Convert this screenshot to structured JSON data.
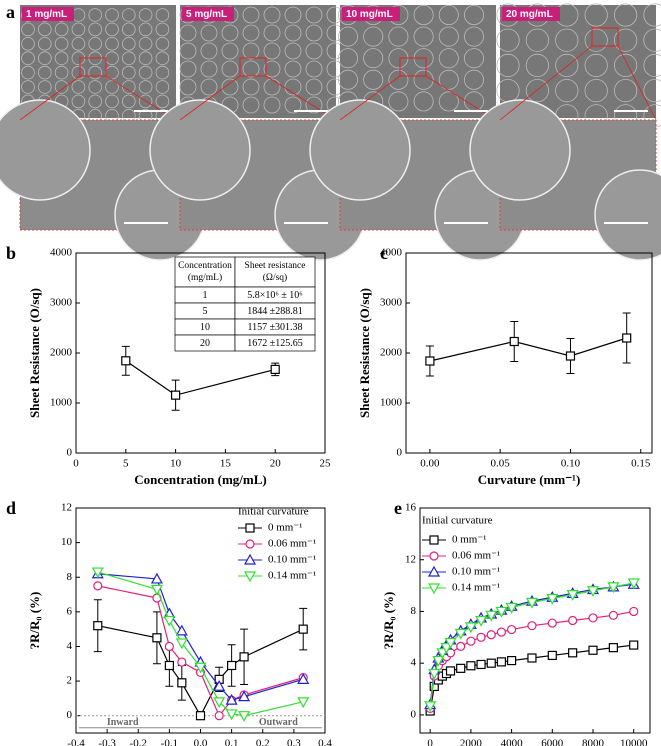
{
  "panel_a": {
    "label": "a",
    "images": [
      "1 mg/mL",
      "5 mg/mL",
      "10 mg/mL",
      "20 mg/mL"
    ]
  },
  "chart_data": [
    {
      "type": "line",
      "panel_label": "b",
      "x_label": "Concentration (mg/mL)",
      "y_label": "Sheet Resistance (O/sq)",
      "xlim": [
        0,
        25
      ],
      "xticks": [
        0,
        5,
        10,
        15,
        20,
        25
      ],
      "ylim": [
        0,
        4000
      ],
      "yticks": [
        0,
        1000,
        2000,
        3000,
        4000
      ],
      "x": [
        5,
        10,
        20
      ],
      "series": [
        {
          "color": "#000000",
          "marker": "square",
          "values": [
            1844,
            1157,
            1672
          ],
          "errors": [
            288.81,
            301.38,
            125.65
          ]
        }
      ],
      "table": {
        "header": [
          "Concentration (mg/mL)",
          "Sheet resistance (Ω/sq)"
        ],
        "rows": [
          [
            "1",
            "5.8×10⁶ ± 10⁶"
          ],
          [
            "5",
            "1844 ±288.81"
          ],
          [
            "10",
            "1157 ±301.38"
          ],
          [
            "20",
            "1672 ±125.65"
          ]
        ]
      }
    },
    {
      "type": "line",
      "panel_label": "c",
      "x_label": "Curvature (mm⁻¹)",
      "y_label": "Sheet Resistance (O/sq)",
      "xlim": [
        -0.017,
        0.158
      ],
      "xticks": [
        {
          "value": 0,
          "label": "0.00"
        },
        {
          "value": 0.05,
          "label": "0.05"
        },
        {
          "value": 0.1,
          "label": "0.10"
        },
        {
          "value": 0.15,
          "label": "0.15"
        }
      ],
      "ylim": [
        0,
        4000
      ],
      "yticks": [
        0,
        1000,
        2000,
        3000,
        4000
      ],
      "x": [
        0,
        0.06,
        0.1,
        0.14
      ],
      "series": [
        {
          "color": "#000000",
          "marker": "square",
          "values": [
            1840,
            2230,
            1940,
            2300
          ],
          "errors": [
            300,
            400,
            350,
            500
          ]
        }
      ]
    },
    {
      "type": "line",
      "panel_label": "d",
      "x_label": "Curvature (mm⁻¹)",
      "y_label": "?R/R₀ (%)",
      "xlim": [
        -0.4,
        0.4
      ],
      "xticks": [
        -0.4,
        -0.3,
        -0.2,
        -0.1,
        {
          "value": 0,
          "label": "0.0"
        },
        0.1,
        0.2,
        0.3,
        0.4
      ],
      "ylim": [
        -1,
        12
      ],
      "yticks": [
        0,
        2,
        4,
        6,
        8,
        10,
        12
      ],
      "legend_title": "Initial curvature",
      "annotations": [
        "Inward",
        "Outward"
      ],
      "x": [
        -0.33,
        -0.14,
        -0.1,
        -0.06,
        0,
        0.06,
        0.1,
        0.14,
        0.33
      ],
      "series": [
        {
          "name": "0 mm⁻¹",
          "color": "#000000",
          "marker": "square",
          "values": [
            5.2,
            4.5,
            2.9,
            1.9,
            0,
            2.1,
            2.9,
            3.4,
            5.0
          ],
          "errors": [
            1.5,
            1.5,
            1.2,
            1.0,
            0,
            0.7,
            1.2,
            1.6,
            1.2
          ]
        },
        {
          "name": "0.06 mm⁻¹",
          "color": "#e0207a",
          "marker": "circle",
          "values": [
            7.5,
            6.8,
            4.0,
            3.1,
            2.5,
            0.0,
            0.9,
            1.2,
            2.2
          ]
        },
        {
          "name": "0.10 mm⁻¹",
          "color": "#2020d0",
          "marker": "triangle-up",
          "values": [
            8.2,
            7.9,
            5.9,
            4.9,
            3.1,
            1.7,
            0.9,
            1.1,
            2.1
          ]
        },
        {
          "name": "0.14 mm⁻¹",
          "color": "#30e030",
          "marker": "triangle-down",
          "values": [
            8.3,
            7.3,
            5.5,
            4.2,
            2.8,
            0.8,
            0.1,
            0,
            0.8
          ]
        }
      ]
    },
    {
      "type": "line",
      "panel_label": "e",
      "x_label": "Bending Cycle",
      "y_label": "?R/R₀ (%)",
      "xlim": [
        -500,
        10800
      ],
      "xticks": [
        0,
        2000,
        4000,
        6000,
        8000,
        10000
      ],
      "ylim": [
        -1.4,
        16
      ],
      "yticks": [
        0,
        4,
        8,
        12,
        16
      ],
      "legend_title": "Initial curvature",
      "x": [
        0,
        200,
        400,
        600,
        800,
        1000,
        1500,
        2000,
        2500,
        3000,
        3500,
        4000,
        5000,
        6000,
        7000,
        8000,
        9000,
        10000
      ],
      "series": [
        {
          "name": "0 mm⁻¹",
          "color": "#000000",
          "marker": "square",
          "values": [
            0.3,
            2.2,
            2.7,
            3.0,
            3.2,
            3.4,
            3.6,
            3.8,
            3.9,
            4.0,
            4.1,
            4.2,
            4.4,
            4.6,
            4.8,
            5.0,
            5.2,
            5.4
          ]
        },
        {
          "name": "0.06 mm⁻¹",
          "color": "#e0207a",
          "marker": "circle",
          "values": [
            0.5,
            3.0,
            3.8,
            4.2,
            4.5,
            4.8,
            5.3,
            5.7,
            6.0,
            6.2,
            6.4,
            6.6,
            6.9,
            7.1,
            7.3,
            7.5,
            7.7,
            8.0
          ]
        },
        {
          "name": "0.10 mm⁻¹",
          "color": "#2020d0",
          "marker": "triangle-up",
          "values": [
            0.8,
            3.5,
            4.4,
            5.0,
            5.4,
            5.8,
            6.5,
            7.0,
            7.5,
            7.8,
            8.1,
            8.4,
            8.8,
            9.1,
            9.4,
            9.7,
            9.9,
            10.1
          ]
        },
        {
          "name": "0.14 mm⁻¹",
          "color": "#30e030",
          "marker": "triangle-down",
          "values": [
            0.7,
            3.2,
            4.2,
            4.8,
            5.2,
            5.6,
            6.3,
            6.8,
            7.3,
            7.7,
            8.0,
            8.3,
            8.7,
            9.0,
            9.3,
            9.6,
            9.9,
            10.2
          ]
        }
      ]
    }
  ]
}
